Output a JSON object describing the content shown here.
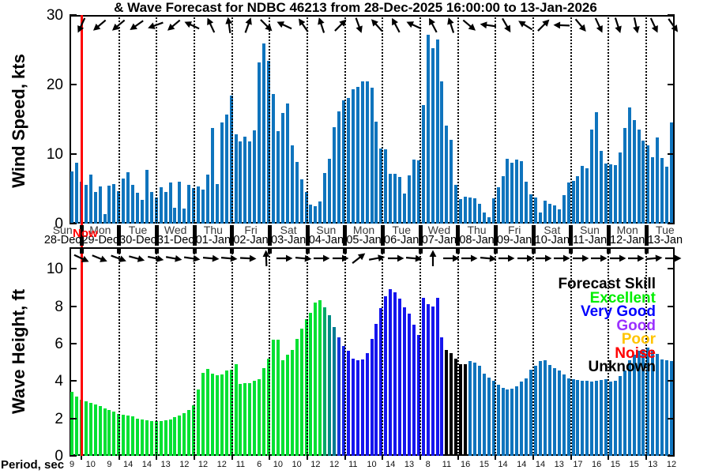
{
  "title": "& Wave Forecast for NDBC 46213 from 28-Dec-2025 16:00:00 to 13-Jan-2026",
  "now": {
    "label": "Now",
    "color": "#ff0000"
  },
  "legend": {
    "title": "Forecast Skill",
    "title_color": "#000000",
    "entries": [
      {
        "label": "Excellent",
        "color": "#00ee00"
      },
      {
        "label": "Very Good",
        "color": "#0000ff"
      },
      {
        "label": "Good",
        "color": "#9b30ff"
      },
      {
        "label": "Poor",
        "color": "#ffc400"
      },
      {
        "label": "Noise",
        "color": "#ff0000"
      },
      {
        "label": "Unknown",
        "color": "#000000"
      }
    ]
  },
  "period_row": {
    "label": "Period, sec",
    "values": [
      9,
      10,
      9,
      14,
      14,
      13,
      12,
      12,
      12,
      11,
      6,
      10,
      10,
      12,
      12,
      11,
      10,
      14,
      13,
      8,
      11,
      16,
      15,
      14,
      14,
      14,
      13,
      17,
      16,
      15,
      15,
      13,
      12
    ]
  },
  "chart_data": {
    "type": "bar",
    "x_day_labels": [
      {
        "day": "Sun",
        "date": "28-Dec"
      },
      {
        "day": "Mon",
        "date": "29-Dec"
      },
      {
        "day": "Tue",
        "date": "30-Dec"
      },
      {
        "day": "Wed",
        "date": "31-Dec"
      },
      {
        "day": "Thu",
        "date": "01-Jan"
      },
      {
        "day": "Fri",
        "date": "02-Jan"
      },
      {
        "day": "Sat",
        "date": "03-Jan"
      },
      {
        "day": "Sun",
        "date": "04-Jan"
      },
      {
        "day": "Mon",
        "date": "05-Jan"
      },
      {
        "day": "Tue",
        "date": "06-Jan"
      },
      {
        "day": "Wed",
        "date": "07-Jan"
      },
      {
        "day": "Thu",
        "date": "08-Jan"
      },
      {
        "day": "Fri",
        "date": "09-Jan"
      },
      {
        "day": "Sat",
        "date": "10-Jan"
      },
      {
        "day": "Sun",
        "date": "11-Jan"
      },
      {
        "day": "Mon",
        "date": "12-Jan"
      },
      {
        "day": "Tue",
        "date": "13-Jan"
      }
    ],
    "gridlines": "vertical dotted line at each midnight",
    "panels": [
      {
        "id": "wind",
        "ylabel": "Wind Speed, kts",
        "yticks": [
          0,
          10,
          20,
          30
        ],
        "ylim": [
          0,
          30
        ],
        "bar_color": "#0f74bd",
        "values": [
          7.5,
          8.7,
          6.0,
          5.6,
          7.0,
          4.6,
          5.3,
          1.4,
          5.5,
          5.7,
          4.7,
          6.5,
          7.4,
          5.6,
          4.4,
          3.4,
          7.7,
          4.5,
          3.8,
          5.2,
          4.6,
          5.9,
          2.3,
          6.0,
          2.2,
          5.6,
          5.1,
          5.3,
          4.9,
          7.0,
          13.8,
          5.7,
          14.5,
          15.7,
          18.4,
          12.8,
          11.8,
          12.5,
          11.8,
          13.4,
          23.2,
          25.9,
          23.4,
          18.6,
          13.3,
          15.9,
          17.3,
          11.2,
          8.9,
          6.4,
          4.6,
          2.7,
          2.5,
          3.2,
          7.3,
          9.3,
          13.9,
          16.1,
          17.7,
          18.1,
          19.3,
          19.7,
          20.4,
          20.4,
          19.6,
          14.7,
          10.8,
          10.7,
          7.2,
          7.2,
          6.7,
          4.3,
          6.9,
          9.2,
          9.1,
          17.0,
          27.2,
          25.2,
          26.5,
          20.4,
          14.1,
          12.1,
          5.6,
          3.5,
          3.9,
          3.7,
          3.6,
          2.8,
          1.6,
          0.9,
          3.6,
          5.2,
          6.8,
          9.3,
          8.8,
          9.2,
          9.0,
          6.0,
          4.2,
          3.7,
          1.6,
          3.3,
          2.8,
          2.6,
          2.0,
          4.1,
          5.9,
          6.1,
          6.8,
          8.3,
          8.0,
          13.5,
          16.0,
          10.5,
          8.6,
          8.5,
          8.4,
          10.2,
          13.8,
          16.7,
          14.9,
          13.5,
          11.9,
          11.2,
          9.6,
          12.4,
          9.4,
          8.2,
          14.6
        ],
        "arrow_angles_deg": [
          115,
          140,
          140,
          145,
          160,
          140,
          205,
          245,
          262,
          290,
          45,
          205,
          235,
          252,
          315,
          70,
          228,
          242,
          205,
          242,
          252,
          40,
          188,
          60,
          212,
          315,
          182,
          50,
          65,
          72,
          78,
          65,
          55
        ],
        "arrow_meaning": "wind direction arrows along panel top"
      },
      {
        "id": "wave",
        "ylabel": "Wave Height, ft",
        "yticks": [
          0,
          2,
          4,
          6,
          8,
          10
        ],
        "ylim": [
          0,
          11.15
        ],
        "values": [
          3.4,
          3.15,
          3.0,
          2.9,
          2.85,
          2.75,
          2.65,
          2.55,
          2.45,
          2.35,
          2.25,
          2.2,
          2.15,
          2.1,
          2.0,
          1.95,
          1.9,
          1.85,
          1.85,
          1.85,
          1.9,
          1.95,
          2.05,
          2.15,
          2.3,
          2.45,
          2.7,
          3.55,
          4.45,
          4.65,
          4.4,
          4.3,
          4.35,
          4.55,
          4.6,
          4.9,
          3.85,
          3.9,
          3.9,
          4.0,
          4.1,
          4.7,
          5.2,
          6.2,
          6.2,
          5.1,
          5.4,
          5.65,
          6.25,
          6.8,
          7.3,
          7.65,
          8.2,
          8.3,
          7.95,
          7.5,
          6.9,
          6.35,
          5.85,
          5.6,
          5.2,
          5.1,
          5.15,
          5.5,
          6.25,
          7.05,
          7.9,
          8.55,
          8.9,
          8.75,
          8.4,
          7.95,
          7.6,
          7.0,
          6.45,
          8.45,
          8.1,
          8.0,
          8.45,
          6.35,
          5.65,
          5.5,
          5.2,
          4.9,
          4.9,
          5.05,
          5.0,
          4.8,
          4.4,
          4.2,
          4.0,
          3.8,
          3.65,
          3.55,
          3.6,
          3.7,
          3.95,
          4.15,
          4.6,
          4.8,
          5.05,
          5.1,
          4.85,
          4.7,
          4.55,
          4.35,
          4.15,
          4.1,
          4.05,
          4.0,
          4.0,
          3.95,
          4.0,
          4.05,
          4.1,
          3.95,
          4.0,
          4.25,
          4.55,
          5.1,
          5.4,
          5.6,
          5.7,
          5.8,
          5.65,
          5.45,
          5.15,
          5.1,
          5.05
        ],
        "skill_runs": [
          [
            "x",
            54
          ],
          [
            "t1",
            1
          ],
          [
            "t2",
            1
          ],
          [
            "t3",
            1
          ],
          [
            "t4",
            1
          ],
          [
            "t5",
            1
          ],
          [
            "v",
            21
          ],
          [
            "u",
            5
          ],
          [
            "d",
            44
          ]
        ],
        "skill_colors": {
          "x": "#00e132",
          "t1": "#00a866",
          "t2": "#008c84",
          "t3": "#007a92",
          "t4": "#1a35dc",
          "t5": "#1524e8",
          "v": "#1515ee",
          "u": "#000000",
          "d": "#0f74bd"
        },
        "skill_meaning": {
          "x": "Excellent",
          "t": "Excellent-to-VeryGood transition",
          "v": "Very Good",
          "u": "Unknown",
          "d": "beyond skill window"
        },
        "arrow_angles_deg": [
          25,
          22,
          20,
          15,
          12,
          10,
          8,
          5,
          5,
          3,
          268,
          0,
          5,
          0,
          0,
          322,
          350,
          0,
          5,
          270,
          0,
          0,
          5,
          0,
          0,
          0,
          0,
          0,
          0,
          0,
          0,
          355,
          0
        ],
        "arrow_meaning": "wave direction arrows along panel top"
      }
    ],
    "periods_sec": [
      9,
      10,
      9,
      14,
      14,
      13,
      12,
      12,
      12,
      11,
      6,
      10,
      10,
      12,
      12,
      11,
      10,
      14,
      13,
      8,
      11,
      16,
      15,
      14,
      14,
      14,
      13,
      17,
      16,
      15,
      15,
      13,
      12
    ]
  }
}
